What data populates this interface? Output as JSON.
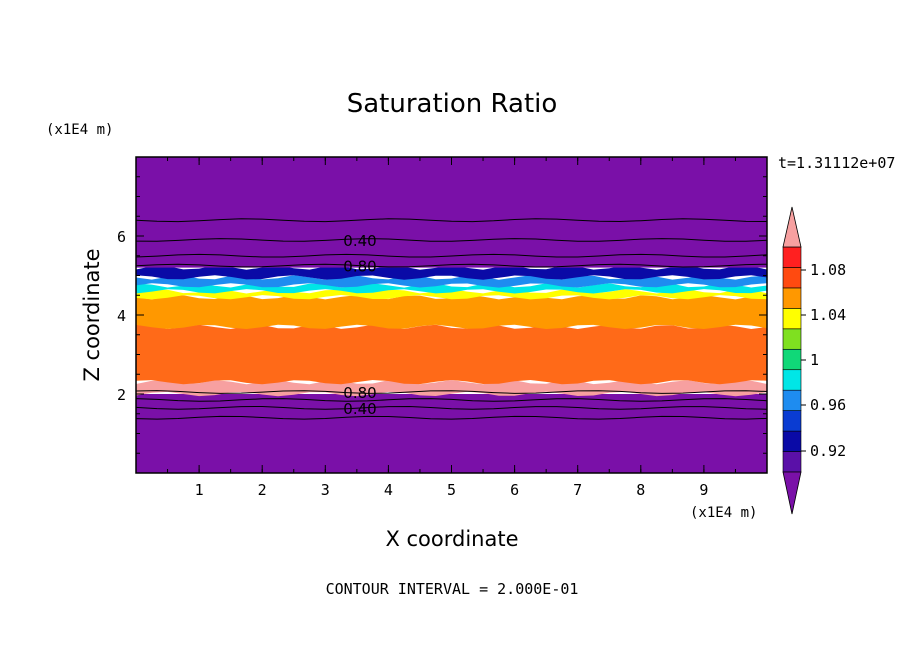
{
  "chart_data": {
    "type": "heatmap",
    "title": "Saturation Ratio",
    "xlabel": "X coordinate",
    "ylabel": "Z coordinate",
    "x_unit": "(x1E4 m)",
    "y_unit": "(x1E4 m)",
    "time_label": "t=1.31112e+07",
    "footer": "CONTOUR INTERVAL = 2.000E-01",
    "xlim": [
      0,
      10
    ],
    "ylim": [
      0,
      8
    ],
    "x_ticks": [
      1,
      2,
      3,
      4,
      5,
      6,
      7,
      8,
      9
    ],
    "y_ticks": [
      2,
      4,
      6
    ],
    "grid": false,
    "colorbar": {
      "ticks": [
        "1.08",
        "1.04",
        "1",
        "0.96",
        "0.92"
      ],
      "levels": [
        0.9,
        0.92,
        0.94,
        0.96,
        0.98,
        1.0,
        1.02,
        1.04,
        1.06,
        1.08,
        1.1
      ],
      "colors": [
        "#5a10a8",
        "#0a0aa6",
        "#0a3cd2",
        "#1e8cf0",
        "#00e6e6",
        "#10d878",
        "#7fe020",
        "#ffff00",
        "#ff9800",
        "#ff4a10",
        "#ff2020",
        "#f7a0a0"
      ],
      "under_color": "#7a10a8",
      "over_color": "#f7a0a0"
    },
    "bands": [
      {
        "z_min": 0.0,
        "z_max": 2.0,
        "color": "#7a10a8"
      },
      {
        "z_min": 2.0,
        "z_max": 2.3,
        "color": "#f7a0a0"
      },
      {
        "z_min": 2.3,
        "z_max": 3.7,
        "color": "#ff6a18"
      },
      {
        "z_min": 3.7,
        "z_max": 4.45,
        "color": "#ff9800"
      },
      {
        "z_min": 4.45,
        "z_max": 4.6,
        "color": "#ffff00"
      },
      {
        "z_min": 4.6,
        "z_max": 4.75,
        "color": "#00e6e6"
      },
      {
        "z_min": 4.75,
        "z_max": 4.95,
        "color": "#1e8cf0"
      },
      {
        "z_min": 4.95,
        "z_max": 5.2,
        "color": "#0a0aa6"
      },
      {
        "z_min": 5.2,
        "z_max": 8.0,
        "color": "#7a10a8"
      }
    ],
    "contours": [
      {
        "z": 6.4,
        "label": ""
      },
      {
        "z": 5.9,
        "label": "0.40"
      },
      {
        "z": 5.5,
        "label": ""
      },
      {
        "z": 5.25,
        "label": "0.80"
      },
      {
        "z": 2.05,
        "label": "0.80"
      },
      {
        "z": 1.85,
        "label": ""
      },
      {
        "z": 1.65,
        "label": "0.40"
      },
      {
        "z": 1.4,
        "label": ""
      }
    ],
    "contour_label_x": 3.55
  }
}
